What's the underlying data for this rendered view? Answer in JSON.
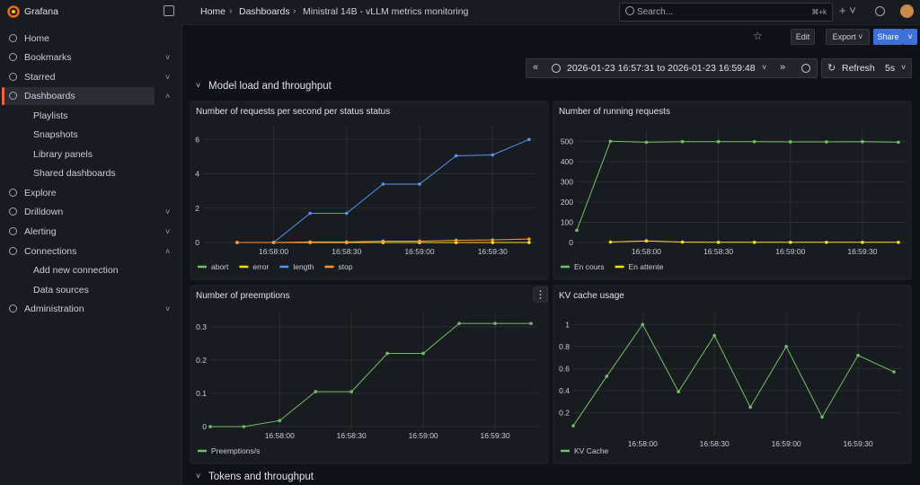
{
  "app": {
    "name": "Grafana"
  },
  "breadcrumb": [
    "Home",
    "Dashboards",
    "Ministral 14B - vLLM metrics monitoring"
  ],
  "search": {
    "placeholder": "Search...",
    "shortcut": "⌘+k"
  },
  "toolbar": {
    "edit": "Edit",
    "export": "Export",
    "share": "Share"
  },
  "time_range": {
    "from": "2026-01-23 16:57:31",
    "separator": "to",
    "to": "2026-01-23 16:59:48"
  },
  "refresh": {
    "label": "Refresh",
    "interval": "5s"
  },
  "nav": {
    "items": [
      {
        "label": "Home"
      },
      {
        "label": "Bookmarks"
      },
      {
        "label": "Starred"
      },
      {
        "label": "Dashboards",
        "children": [
          "Playlists",
          "Snapshots",
          "Library panels",
          "Shared dashboards"
        ]
      },
      {
        "label": "Explore"
      },
      {
        "label": "Drilldown"
      },
      {
        "label": "Alerting"
      },
      {
        "label": "Connections",
        "children": [
          "Add new connection",
          "Data sources"
        ]
      },
      {
        "label": "Administration"
      }
    ]
  },
  "rows": [
    "Model load and throughput",
    "Tokens and throughput"
  ],
  "chart_data": [
    {
      "type": "line",
      "title": "Number of requests per second per status status",
      "x": [
        "16:57:45",
        "16:58:00",
        "16:58:15",
        "16:58:30",
        "16:58:45",
        "16:59:00",
        "16:59:15",
        "16:59:30",
        "16:59:45"
      ],
      "series": [
        {
          "name": "abort",
          "color": "#73bf69",
          "values": [
            0,
            0,
            0,
            0,
            0,
            0,
            0,
            0,
            0
          ]
        },
        {
          "name": "error",
          "color": "#fade2a",
          "values": [
            0,
            0,
            0,
            0,
            0,
            0,
            0,
            0,
            0
          ]
        },
        {
          "name": "length",
          "color": "#5794f2",
          "values": [
            0,
            0,
            1.7,
            1.7,
            3.4,
            3.4,
            5.05,
            5.1,
            6
          ]
        },
        {
          "name": "stop",
          "color": "#ff9830",
          "values": [
            0,
            0,
            0.03,
            0.03,
            0.08,
            0.08,
            0.13,
            0.15,
            0.2
          ]
        }
      ],
      "xlim": [
        "16:57:31",
        "16:59:48"
      ],
      "xticks": [
        "16:58:00",
        "16:58:30",
        "16:59:00",
        "16:59:30"
      ],
      "ylim": [
        0,
        6.8
      ],
      "yticks": [
        0,
        2,
        4,
        6
      ],
      "grid": true,
      "legend": "bottom"
    },
    {
      "type": "line",
      "title": "Number of running requests",
      "x": [
        "16:57:31",
        "16:57:45",
        "16:58:00",
        "16:58:15",
        "16:58:30",
        "16:58:45",
        "16:59:00",
        "16:59:15",
        "16:59:30",
        "16:59:45"
      ],
      "series": [
        {
          "name": "En cours",
          "color": "#73bf69",
          "values": [
            60,
            500,
            495,
            498,
            498,
            498,
            497,
            497,
            498,
            495
          ]
        },
        {
          "name": "En attente",
          "color": "#fade2a",
          "values": [
            null,
            2,
            8,
            2,
            1,
            1,
            1,
            1,
            1,
            1
          ]
        }
      ],
      "xlim": [
        "16:57:31",
        "16:59:48"
      ],
      "xticks": [
        "16:58:00",
        "16:58:30",
        "16:59:00",
        "16:59:30"
      ],
      "ylim": [
        0,
        550
      ],
      "yticks": [
        0,
        100,
        200,
        300,
        400,
        500
      ],
      "grid": true,
      "legend": "bottom"
    },
    {
      "type": "line",
      "title": "Number of preemptions",
      "x": [
        "16:57:31",
        "16:57:45",
        "16:58:00",
        "16:58:15",
        "16:58:30",
        "16:58:45",
        "16:59:00",
        "16:59:15",
        "16:59:30",
        "16:59:45"
      ],
      "series": [
        {
          "name": "Preemptions/s",
          "color": "#73bf69",
          "values": [
            0,
            0,
            0.018,
            0.105,
            0.105,
            0.22,
            0.22,
            0.31,
            0.31,
            0.31
          ]
        }
      ],
      "xlim": [
        "16:57:31",
        "16:59:48"
      ],
      "xticks": [
        "16:58:00",
        "16:58:30",
        "16:59:00",
        "16:59:30"
      ],
      "ylim": [
        0,
        0.34
      ],
      "yticks": [
        0,
        0.1,
        0.2,
        0.3
      ],
      "grid": true,
      "legend": "bottom"
    },
    {
      "type": "line",
      "title": "KV cache usage",
      "x": [
        "16:57:31",
        "16:57:45",
        "16:58:00",
        "16:58:15",
        "16:58:30",
        "16:58:45",
        "16:59:00",
        "16:59:15",
        "16:59:30",
        "16:59:45"
      ],
      "series": [
        {
          "name": "KV Cache",
          "color": "#73bf69",
          "values": [
            0.08,
            0.53,
            1,
            0.39,
            0.9,
            0.25,
            0.8,
            0.16,
            0.72,
            0.57
          ]
        }
      ],
      "xlim": [
        "16:57:31",
        "16:59:48"
      ],
      "xticks": [
        "16:58:00",
        "16:58:30",
        "16:59:00",
        "16:59:30"
      ],
      "ylim": [
        0,
        1.1
      ],
      "yticks": [
        0.2,
        0.4,
        0.6,
        0.8,
        1
      ],
      "grid": true,
      "legend": "bottom"
    }
  ]
}
